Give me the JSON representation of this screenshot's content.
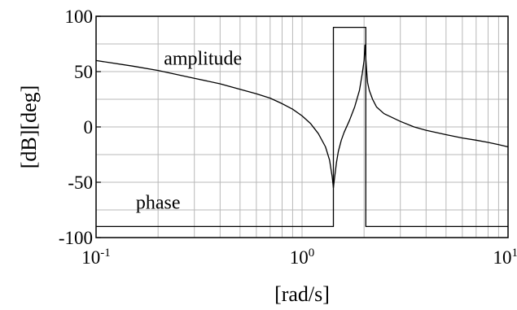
{
  "chart_data": {
    "type": "line",
    "title": "",
    "xlabel": "[rad/s]",
    "ylabel": "[dB][deg]",
    "x_scale": "log",
    "xlim": [
      0.1,
      10
    ],
    "ylim": [
      -100,
      100
    ],
    "grid": true,
    "legend": "none",
    "x_ticks": [
      {
        "base": "10",
        "exp": "-1",
        "value": 0.1
      },
      {
        "base": "10",
        "exp": "0",
        "value": 1
      },
      {
        "base": "10",
        "exp": "1",
        "value": 10
      }
    ],
    "y_ticks": [
      {
        "label": "100",
        "value": 100
      },
      {
        "label": "50",
        "value": 50
      },
      {
        "label": "0",
        "value": 0
      },
      {
        "label": "-50",
        "value": -50
      },
      {
        "label": "-100",
        "value": -100
      }
    ],
    "annotations": [
      {
        "text": "amplitude",
        "x": 0.33,
        "y": 62
      },
      {
        "text": "phase",
        "x": 0.2,
        "y": -68
      }
    ],
    "series": [
      {
        "key": "amplitude",
        "x": [
          0.1,
          0.15,
          0.2,
          0.3,
          0.4,
          0.5,
          0.6,
          0.7,
          0.8,
          0.9,
          1.0,
          1.1,
          1.2,
          1.3,
          1.36,
          1.4,
          1.42,
          1.44,
          1.47,
          1.5,
          1.55,
          1.6,
          1.7,
          1.8,
          1.9,
          1.96,
          2.0,
          2.02,
          2.04,
          2.06,
          2.08,
          2.12,
          2.2,
          2.3,
          2.5,
          3.0,
          3.5,
          4.0,
          5.0,
          6.0,
          7.0,
          8.0,
          9.0,
          10.0
        ],
        "y": [
          60,
          55,
          51,
          44,
          39,
          34,
          30,
          26,
          21,
          16,
          10,
          3,
          -6,
          -18,
          -30,
          -45,
          -55,
          -45,
          -32,
          -22,
          -12,
          -5,
          6,
          18,
          33,
          48,
          60,
          74,
          62,
          50,
          40,
          33,
          25,
          18,
          12,
          5,
          0,
          -3,
          -7,
          -10,
          -12,
          -14,
          -16,
          -18
        ]
      },
      {
        "key": "phase",
        "x": [
          0.1,
          1.42,
          1.42,
          2.04,
          2.04,
          10.0
        ],
        "y": [
          -90,
          -90,
          90,
          90,
          -90,
          -90
        ]
      }
    ]
  }
}
